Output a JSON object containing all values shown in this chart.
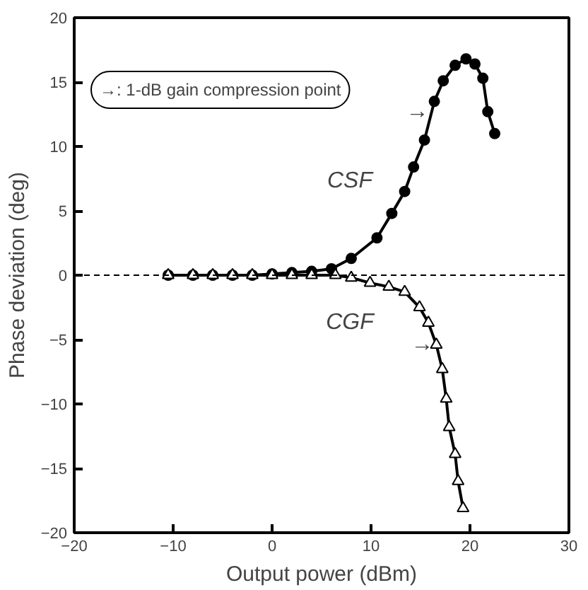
{
  "chart_data": {
    "type": "line",
    "xlabel": "Output power (dBm)",
    "ylabel": "Phase deviation (deg)",
    "xlim": [
      -20,
      30
    ],
    "ylim": [
      -20,
      20
    ],
    "xticks": [
      -20,
      -10,
      0,
      10,
      20,
      30
    ],
    "yticks": [
      -20,
      -15,
      -10,
      -5,
      0,
      5,
      10,
      15,
      20
    ],
    "grid": false,
    "line_style": "solid",
    "series": [
      {
        "color": "#000000",
        "marker": "circle",
        "x": [
          -10.5,
          -8,
          -6,
          -4,
          -2,
          0,
          2,
          4,
          6,
          8,
          10.6,
          12.1,
          13.4,
          14.3,
          15.4,
          16.4,
          17.3,
          18.5,
          19.6,
          20.5,
          21.3,
          21.8,
          22.5
        ],
        "values": [
          0,
          0,
          0,
          0,
          0,
          0.1,
          0.2,
          0.3,
          0.5,
          1.3,
          2.9,
          4.8,
          6.5,
          8.4,
          10.5,
          13.5,
          15.1,
          16.3,
          16.8,
          16.4,
          15.3,
          12.7,
          11
        ]
      },
      {
        "color": "#000000",
        "marker": "triangle",
        "x": [
          -10.5,
          -8,
          -6,
          -4,
          -2,
          0,
          2,
          4,
          6.4,
          8,
          9.9,
          11.8,
          13.4,
          14.9,
          15.8,
          16.6,
          17.2,
          17.6,
          17.9,
          18.5,
          18.8,
          19.3
        ],
        "values": [
          0,
          0,
          0,
          0,
          0,
          0,
          0,
          0,
          0,
          -0.2,
          -0.6,
          -0.9,
          -1.3,
          -2.5,
          -3.7,
          -5.4,
          -7.3,
          -9.6,
          -11.8,
          -13.9,
          -16,
          -18.1
        ]
      }
    ],
    "ref_lines": [
      {
        "axis": "y",
        "value": 0,
        "line_style": "dashed",
        "color": "#000000"
      }
    ],
    "annotations": [
      "→: 1-dB gain compression point",
      {
        "text": "→",
        "x": 16.1,
        "y": 12.7
      },
      {
        "text": "→",
        "x": 16.6,
        "y": -5.4
      },
      "CSF",
      "CGF"
    ]
  }
}
